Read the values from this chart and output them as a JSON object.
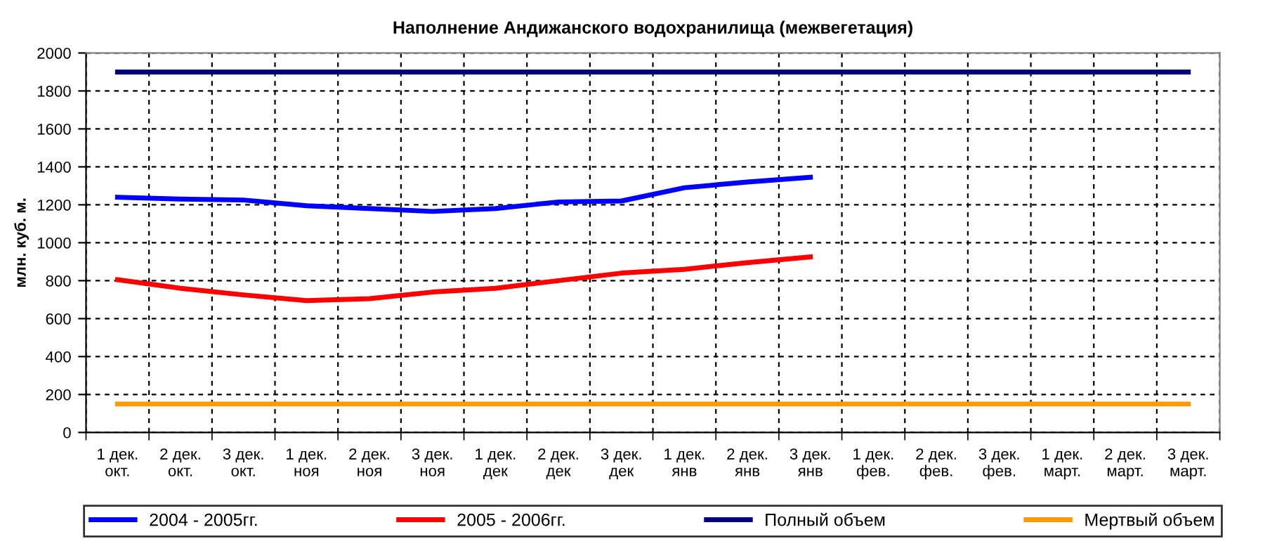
{
  "chart_data": {
    "type": "line",
    "title": "Наполнение Андижанского водохранилища (межвегетация)",
    "ylabel": "млн. куб. м.",
    "categories": [
      "1 дек.\nокт.",
      "2 дек.\nокт.",
      "3 дек.\nокт.",
      "1 дек.\nноя",
      "2 дек.\nноя",
      "3 дек.\nноя",
      "1 дек.\nдек",
      "2 дек.\nдек",
      "3 дек.\nдек",
      "1 дек.\nянв",
      "2 дек.\nянв",
      "3 дек.\nянв",
      "1 дек.\nфев.",
      "2 дек.\nфев.",
      "3 дек.\nфев.",
      "1 дек.\nмарт.",
      "2 дек.\nмарт.",
      "3 дек.\nмарт."
    ],
    "series": [
      {
        "name": "2004 - 2005гг.",
        "color": "#0000ff",
        "values": [
          1240,
          1230,
          1225,
          1195,
          1180,
          1165,
          1180,
          1215,
          1220,
          1290,
          1320,
          1345,
          null,
          null,
          null,
          null,
          null,
          null
        ]
      },
      {
        "name": "2005 - 2006гг.",
        "color": "#ff0000",
        "values": [
          805,
          760,
          725,
          695,
          705,
          740,
          760,
          800,
          840,
          860,
          895,
          925,
          null,
          null,
          null,
          null,
          null,
          null
        ]
      },
      {
        "name": "Полный объем",
        "color": "#000080",
        "values": [
          1900,
          1900,
          1900,
          1900,
          1900,
          1900,
          1900,
          1900,
          1900,
          1900,
          1900,
          1900,
          1900,
          1900,
          1900,
          1900,
          1900,
          1900
        ]
      },
      {
        "name": "Мертвый объем",
        "color": "#ff9900",
        "values": [
          150,
          150,
          150,
          150,
          150,
          150,
          150,
          150,
          150,
          150,
          150,
          150,
          150,
          150,
          150,
          150,
          150,
          150
        ]
      }
    ],
    "ylim": [
      0,
      2000
    ],
    "yticks": [
      0,
      200,
      400,
      600,
      800,
      1000,
      1200,
      1400,
      1600,
      1800,
      2000
    ],
    "grid": true,
    "legend": "bottom",
    "marker": "none",
    "line_style": "solid"
  }
}
